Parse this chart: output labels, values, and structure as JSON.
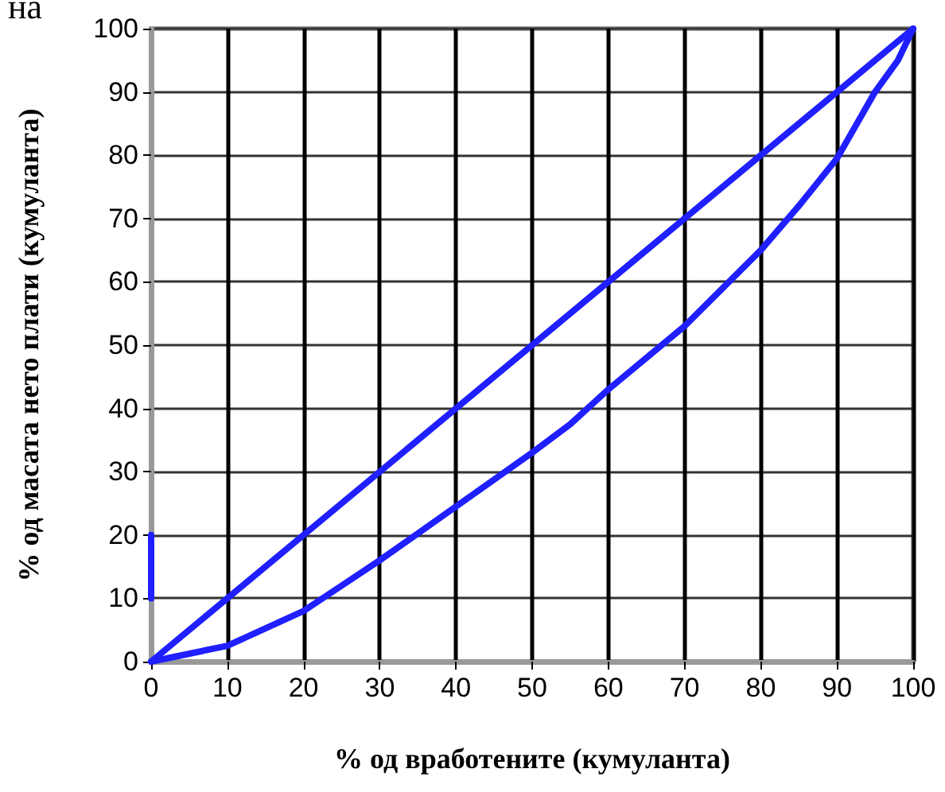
{
  "chart_data": {
    "type": "line",
    "title": "на",
    "xlabel": "% од вработените (кумуланта)",
    "ylabel": "% од масата нето плати (кумуланта)",
    "series": [
      {
        "color": "#1f1fff",
        "x": [
          0,
          100
        ],
        "values": [
          0,
          100
        ]
      },
      {
        "color": "#1f1fff",
        "x": [
          0,
          10,
          20,
          25,
          30,
          40,
          50,
          55,
          60,
          70,
          80,
          85,
          90,
          95,
          98,
          100
        ],
        "values": [
          0,
          2.5,
          8,
          12,
          16,
          24.5,
          33,
          37.5,
          43,
          53,
          65,
          72,
          79.5,
          90,
          95,
          100
        ]
      },
      {
        "color": "#1f1fff",
        "x": [
          0,
          0
        ],
        "values": [
          10,
          20
        ]
      }
    ],
    "xlim": [
      0,
      100
    ],
    "xticks": [
      0,
      10,
      20,
      30,
      40,
      50,
      60,
      70,
      80,
      90,
      100
    ],
    "ylim": [
      0,
      100
    ],
    "yticks": [
      0,
      10,
      20,
      30,
      40,
      50,
      60,
      70,
      80,
      90,
      100
    ],
    "grid": true,
    "marker": "none",
    "line_style": "solid"
  }
}
